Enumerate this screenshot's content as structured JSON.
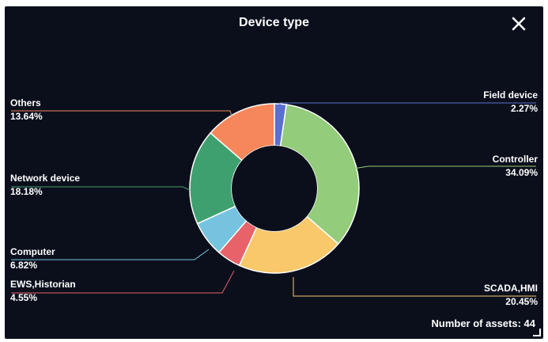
{
  "dialog": {
    "title": "Device type",
    "footer": "Number of assets: 44"
  },
  "chart_data": {
    "type": "pie",
    "donut": true,
    "categories": [
      "Field device",
      "Controller",
      "SCADA,HMI",
      "EWS,Historian",
      "Computer",
      "Network device",
      "Others"
    ],
    "values": [
      2.27,
      34.09,
      20.45,
      4.55,
      6.82,
      18.18,
      13.64
    ],
    "labels": [
      "2.27%",
      "34.09%",
      "20.45%",
      "4.55%",
      "6.82%",
      "18.18%",
      "13.64%"
    ],
    "colors": [
      "#5b6fd1",
      "#93cc7a",
      "#f8c86b",
      "#e8626a",
      "#76c3e0",
      "#3fa06f",
      "#f6875b"
    ]
  }
}
